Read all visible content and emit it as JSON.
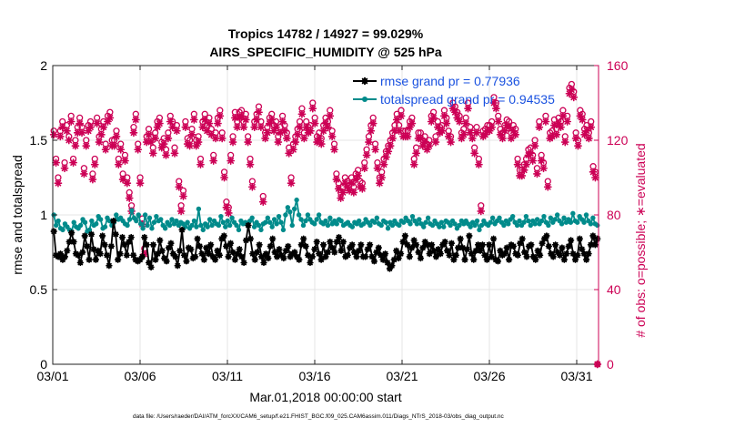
{
  "chart_data": {
    "type": "line",
    "title_line1": "Tropics 14782 / 14927 = 99.029%",
    "title_line2": "AIRS_SPECIFIC_HUMIDITY @ 525 hPa",
    "xlabel": "Mar.01,2018 00:00:00 start",
    "ylabel_left": "rmse and totalspread",
    "ylabel_right": "# of obs: o=possible; ∗=evaluated",
    "footnote": "data file: /Users/raeder/DAI/ATM_forcXX/CAM6_setup/f.e21.FHIST_BGC.f09_025.CAM6assim.011/Diags_NTrS_2018-03/obs_diag_output.nc",
    "xlim": [
      0,
      31.25
    ],
    "ylim_left": [
      0,
      2
    ],
    "ylim_right": [
      0,
      160
    ],
    "x_ticks": [
      0,
      5,
      10,
      15,
      20,
      25,
      30
    ],
    "x_tick_labels": [
      "03/01",
      "03/06",
      "03/11",
      "03/16",
      "03/21",
      "03/26",
      "03/31"
    ],
    "y_ticks_left": [
      0,
      0.5,
      1,
      1.5,
      2
    ],
    "y_tick_labels_left": [
      "0",
      "0.5",
      "1",
      "1.5",
      "2"
    ],
    "y_ticks_right": [
      0,
      40,
      80,
      120,
      160
    ],
    "y_tick_labels_right": [
      "0",
      "40",
      "80",
      "120",
      "160"
    ],
    "legend_location": "top-right",
    "colors": {
      "rmse": "#000000",
      "spread": "#008b8b",
      "obs": "#cc0055",
      "legend_text": "#1a52e0"
    },
    "series": [
      {
        "name": "rmse grand pr = 0.77936",
        "axis": "left",
        "marker": "star",
        "values": [
          0.89,
          0.73,
          0.72,
          0.74,
          0.7,
          0.72,
          0.76,
          0.82,
          0.88,
          0.82,
          0.74,
          0.73,
          0.68,
          0.75,
          0.86,
          0.79,
          0.7,
          0.87,
          0.77,
          0.7,
          0.76,
          0.74,
          0.86,
          0.8,
          0.73,
          0.66,
          0.79,
          0.96,
          0.87,
          0.7,
          0.74,
          0.85,
          0.8,
          0.73,
          0.82,
          0.85,
          0.73,
          0.7,
          0.69,
          0.7,
          0.72,
          0.85,
          0.8,
          0.68,
          0.65,
          0.8,
          0.7,
          0.74,
          0.83,
          0.76,
          0.71,
          0.69,
          0.78,
          0.81,
          0.74,
          0.72,
          0.66,
          0.76,
          0.9,
          0.73,
          0.69,
          0.78,
          0.77,
          0.71,
          0.72,
          0.84,
          0.79,
          0.74,
          0.7,
          0.78,
          0.74,
          0.8,
          0.72,
          0.7,
          0.76,
          0.73,
          0.84,
          0.86,
          0.79,
          0.72,
          0.81,
          0.75,
          0.7,
          0.74,
          0.77,
          0.72,
          0.68,
          0.83,
          0.93,
          0.84,
          0.74,
          0.7,
          0.75,
          0.8,
          0.72,
          0.68,
          0.74,
          0.71,
          0.79,
          0.84,
          0.75,
          0.72,
          0.77,
          0.73,
          0.71,
          0.76,
          0.79,
          0.72,
          0.74,
          0.75,
          0.72,
          0.7,
          0.8,
          0.84,
          0.79,
          0.73,
          0.68,
          0.72,
          0.77,
          0.82,
          0.74,
          0.7,
          0.8,
          0.72,
          0.75,
          0.82,
          0.78,
          0.75,
          0.82,
          0.85,
          0.76,
          0.82,
          0.72,
          0.73,
          0.78,
          0.8,
          0.75,
          0.72,
          0.76,
          0.8,
          0.72,
          0.72,
          0.77,
          0.8,
          0.72,
          0.69,
          0.75,
          0.78,
          0.73,
          0.7,
          0.74,
          0.68,
          0.64,
          0.66,
          0.7,
          0.76,
          0.71,
          0.74,
          0.82,
          0.86,
          0.8,
          0.72,
          0.78,
          0.83,
          0.8,
          0.75,
          0.71,
          0.78,
          0.82,
          0.8,
          0.74,
          0.8,
          0.76,
          0.72,
          0.77,
          0.74,
          0.8,
          0.82,
          0.76,
          0.73,
          0.81,
          0.7,
          0.73,
          0.78,
          0.84,
          0.78,
          0.7,
          0.77,
          0.86,
          0.74,
          0.7,
          0.76,
          0.8,
          0.76,
          0.8,
          0.73,
          0.7,
          0.8,
          0.72,
          0.84,
          0.7,
          0.69,
          0.76,
          0.73,
          0.74,
          0.78,
          0.7,
          0.8,
          0.79,
          0.74,
          0.73,
          0.81,
          0.84,
          0.75,
          0.72,
          0.79,
          0.8,
          0.72,
          0.7,
          0.76,
          0.73,
          0.81,
          0.84,
          0.86,
          0.79,
          0.74,
          0.72,
          0.8,
          0.75,
          0.73,
          0.78,
          0.7,
          0.74,
          0.79,
          0.83,
          0.74,
          0.7,
          0.73,
          0.84,
          0.77,
          0.74,
          0.7,
          0.74,
          0.8,
          0.86,
          0.8,
          0.84
        ]
      },
      {
        "name": "totalspread grand pr = 0.94535",
        "axis": "left",
        "marker": "dot",
        "values": [
          1.0,
          0.93,
          0.96,
          0.91,
          0.9,
          0.94,
          0.92,
          0.9,
          0.89,
          0.95,
          0.92,
          0.91,
          0.93,
          0.97,
          0.95,
          0.89,
          0.9,
          0.96,
          0.93,
          0.94,
          0.99,
          0.97,
          0.91,
          0.92,
          0.98,
          0.96,
          0.93,
          0.95,
          1.0,
          0.97,
          0.98,
          0.96,
          0.94,
          0.93,
          0.97,
          1.03,
          0.98,
          0.96,
          1.0,
          0.94,
          0.91,
          1.0,
          0.93,
          0.98,
          0.91,
          0.95,
          0.99,
          0.96,
          0.97,
          0.93,
          0.91,
          0.95,
          0.93,
          0.97,
          0.94,
          0.96,
          0.93,
          0.95,
          0.94,
          0.92,
          0.95,
          0.91,
          0.93,
          0.96,
          0.92,
          1.04,
          0.93,
          0.9,
          0.94,
          0.92,
          0.97,
          0.93,
          0.96,
          0.94,
          0.93,
          0.99,
          0.95,
          0.92,
          0.96,
          0.93,
          0.98,
          0.95,
          0.93,
          0.9,
          0.96,
          0.94,
          0.95,
          0.93,
          0.96,
          0.98,
          0.92,
          0.95,
          0.93,
          0.9,
          0.94,
          0.95,
          0.98,
          0.95,
          0.92,
          0.97,
          0.94,
          0.99,
          0.95,
          0.9,
          1.0,
          1.05,
          1.02,
          0.93,
          1.04,
          1.1,
          1.0,
          0.97,
          0.93,
          0.96,
          1.0,
          0.97,
          0.95,
          0.94,
          0.97,
          1.0,
          0.95,
          0.94,
          0.96,
          0.93,
          0.98,
          0.94,
          0.96,
          0.94,
          0.97,
          0.96,
          0.93,
          0.94,
          0.95,
          0.93,
          0.92,
          0.95,
          0.94,
          0.96,
          0.93,
          0.94,
          0.97,
          0.95,
          0.93,
          0.96,
          0.95,
          0.98,
          0.94,
          0.93,
          0.96,
          0.95,
          0.91,
          0.95,
          0.93,
          0.96,
          0.94,
          0.93,
          0.96,
          0.95,
          0.98,
          0.96,
          0.94,
          0.99,
          0.96,
          0.94,
          0.97,
          0.94,
          0.92,
          0.95,
          0.98,
          0.94,
          0.93,
          0.96,
          0.94,
          0.92,
          0.95,
          0.92,
          0.96,
          0.95,
          0.93,
          0.96,
          0.94,
          0.91,
          0.93,
          0.96,
          0.94,
          0.96,
          0.94,
          0.92,
          0.95,
          0.93,
          0.96,
          0.9,
          0.93,
          0.96,
          0.94,
          0.93,
          0.95,
          0.98,
          0.94,
          0.96,
          0.98,
          0.95,
          0.93,
          0.96,
          0.94,
          0.97,
          0.99,
          0.95,
          0.93,
          0.96,
          0.93,
          0.95,
          0.99,
          0.96,
          0.93,
          0.96,
          0.94,
          0.97,
          0.94,
          0.96,
          0.99,
          0.95,
          0.93,
          0.98,
          0.95,
          0.97,
          1.0,
          0.96,
          0.94,
          0.98,
          0.95,
          0.97,
          0.95,
          1.01,
          0.96,
          0.95,
          0.99,
          0.97,
          0.95,
          1.0,
          0.96,
          0.94,
          0.98,
          0.94,
          0.93
        ]
      },
      {
        "name": "possible",
        "axis": "right",
        "marker": "circle",
        "values": [
          125,
          110,
          100,
          125,
          130,
          108,
          128,
          122,
          133,
          110,
          120,
          127,
          132,
          127,
          105,
          120,
          128,
          130,
          102,
          110,
          132,
          122,
          126,
          130,
          118,
          133,
          135,
          120,
          120,
          125,
          110,
          118,
          102,
          112,
          100,
          92,
          85,
          127,
          134,
          118,
          100,
          78,
          62,
          122,
          126,
          122,
          116,
          124,
          130,
          132,
          119,
          121,
          115,
          124,
          133,
          130,
          116,
          128,
          98,
          85,
          93,
          130,
          121,
          120,
          126,
          134,
          120,
          122,
          110,
          130,
          134,
          128,
          132,
          126,
          112,
          124,
          132,
          136,
          124,
          103,
          87,
          84,
          112,
          122,
          135,
          130,
          135,
          136,
          130,
          134,
          122,
          110,
          98,
          130,
          134,
          138,
          130,
          90,
          124,
          127,
          132,
          134,
          128,
          130,
          122,
          127,
          133,
          128,
          124,
          116,
          100,
          118,
          122,
          126,
          130,
          137,
          124,
          130,
          127,
          128,
          140,
          132,
          122,
          124,
          121,
          128,
          132,
          130,
          136,
          125,
          118,
          102,
          97,
          92,
          95,
          100,
          98,
          96,
          100,
          95,
          102,
          104,
          98,
          97,
          108,
          115,
          122,
          128,
          132,
          118,
          108,
          100,
          103,
          110,
          114,
          117,
          120,
          124,
          128,
          134,
          128,
          136,
          125,
          125,
          125,
          130,
          132,
          110,
          116,
          124,
          124,
          120,
          122,
          118,
          120,
          133,
          135,
          122,
          130,
          127,
          128,
          136,
          132,
          125,
          122,
          140,
          138,
          135,
          133,
          124,
          126,
          132,
          140,
          127,
          124,
          116,
          127,
          110,
          85,
          125,
          126,
          128,
          128,
          130,
          143,
          140,
          133,
          126,
          124,
          128,
          131,
          130,
          124,
          128,
          126,
          110,
          104,
          104,
          107,
          110,
          115,
          116,
          112,
          120,
          105,
          130,
          112,
          108,
          133,
          98,
          124,
          125,
          131,
          126,
          132,
          130,
          136,
          122,
          133,
          148,
          150,
          146,
          124,
          120,
          136,
          134,
          126,
          128,
          124,
          130,
          106,
          103,
          0
        ]
      },
      {
        "name": "evaluated",
        "axis": "right",
        "marker": "star",
        "values": [
          123,
          108,
          97,
          122,
          127,
          105,
          125,
          120,
          130,
          108,
          117,
          124,
          129,
          124,
          102,
          117,
          125,
          127,
          99,
          107,
          129,
          119,
          123,
          127,
          115,
          130,
          132,
          117,
          117,
          122,
          107,
          115,
          99,
          109,
          97,
          89,
          82,
          124,
          131,
          115,
          97,
          75,
          59,
          119,
          123,
          119,
          113,
          121,
          127,
          129,
          116,
          118,
          112,
          121,
          130,
          127,
          113,
          125,
          95,
          82,
          90,
          127,
          118,
          117,
          123,
          131,
          117,
          119,
          107,
          127,
          131,
          125,
          129,
          123,
          109,
          121,
          129,
          133,
          121,
          100,
          84,
          81,
          109,
          119,
          132,
          127,
          132,
          133,
          127,
          131,
          119,
          107,
          95,
          127,
          131,
          135,
          127,
          87,
          121,
          124,
          129,
          131,
          125,
          127,
          119,
          124,
          130,
          125,
          121,
          113,
          97,
          115,
          119,
          123,
          127,
          134,
          121,
          127,
          124,
          125,
          137,
          129,
          119,
          121,
          118,
          125,
          129,
          127,
          133,
          122,
          115,
          99,
          94,
          89,
          92,
          97,
          95,
          93,
          97,
          92,
          99,
          101,
          95,
          94,
          105,
          112,
          119,
          125,
          129,
          115,
          105,
          97,
          100,
          107,
          111,
          114,
          117,
          121,
          125,
          131,
          125,
          133,
          122,
          122,
          122,
          127,
          129,
          107,
          113,
          121,
          121,
          117,
          119,
          115,
          117,
          130,
          132,
          119,
          127,
          124,
          125,
          133,
          129,
          122,
          119,
          137,
          135,
          132,
          130,
          121,
          123,
          129,
          137,
          124,
          121,
          113,
          124,
          107,
          82,
          122,
          123,
          125,
          125,
          127,
          140,
          137,
          130,
          123,
          121,
          125,
          128,
          127,
          121,
          125,
          123,
          107,
          101,
          101,
          104,
          107,
          112,
          113,
          109,
          117,
          102,
          127,
          109,
          105,
          130,
          95,
          121,
          122,
          128,
          123,
          129,
          127,
          133,
          119,
          130,
          145,
          147,
          143,
          121,
          117,
          133,
          131,
          123,
          125,
          121,
          127,
          103,
          100,
          0
        ]
      }
    ]
  }
}
